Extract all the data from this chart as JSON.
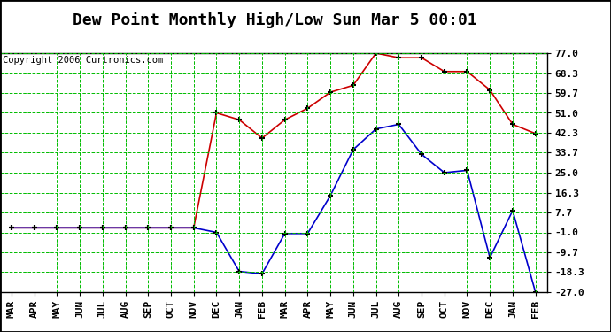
{
  "title": "Dew Point Monthly High/Low Sun Mar 5 00:01",
  "copyright": "Copyright 2006 Curtronics.com",
  "months": [
    "MAR",
    "APR",
    "MAY",
    "JUN",
    "JUL",
    "AUG",
    "SEP",
    "OCT",
    "NOV",
    "DEC",
    "JAN",
    "FEB",
    "MAR",
    "APR",
    "MAY",
    "JUN",
    "JUL",
    "AUG",
    "SEP",
    "OCT",
    "NOV",
    "DEC",
    "JAN",
    "FEB"
  ],
  "high_data": [
    1.0,
    1.0,
    1.0,
    1.0,
    1.0,
    1.0,
    1.0,
    1.0,
    1.0,
    51.0,
    48.0,
    40.0,
    48.0,
    53.0,
    60.0,
    63.0,
    77.0,
    75.0,
    75.0,
    69.0,
    69.0,
    61.0,
    46.0,
    42.0
  ],
  "low_data": [
    1.0,
    1.0,
    1.0,
    1.0,
    1.0,
    1.0,
    1.0,
    1.0,
    1.0,
    -1.0,
    -18.0,
    -19.0,
    -1.5,
    -1.5,
    15.0,
    35.0,
    44.0,
    46.0,
    33.0,
    25.0,
    26.0,
    -12.0,
    8.5,
    -27.0
  ],
  "yticks": [
    77.0,
    68.3,
    59.7,
    51.0,
    42.3,
    33.7,
    25.0,
    16.3,
    7.7,
    -1.0,
    -9.7,
    -18.3,
    -27.0
  ],
  "ymin": -27.0,
  "ymax": 77.0,
  "high_color": "#cc0000",
  "low_color": "#0000cc",
  "grid_color": "#00bb00",
  "bg_color": "#ffffff",
  "title_fontsize": 13,
  "copyright_fontsize": 7.5,
  "tick_fontsize": 8
}
